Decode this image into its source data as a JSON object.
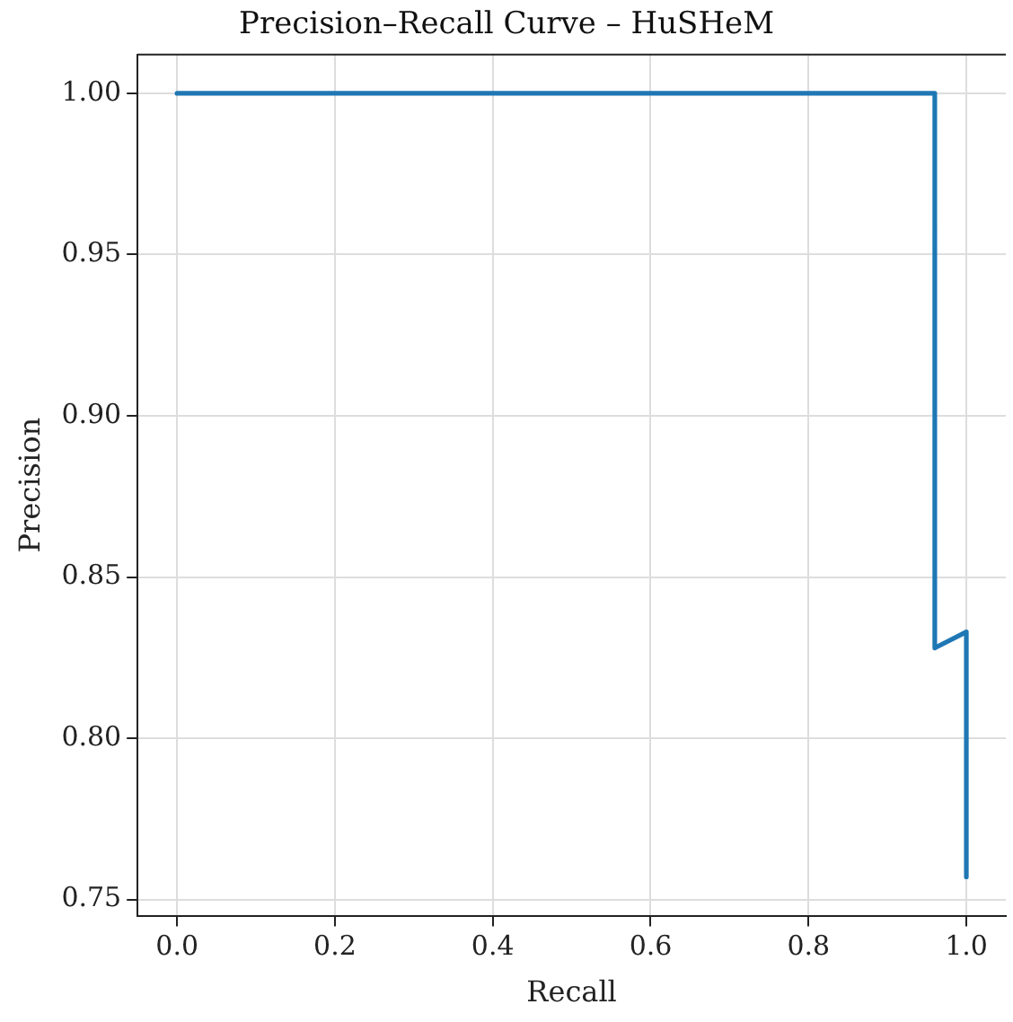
{
  "chart_data": {
    "type": "line",
    "title": "Precision–Recall Curve – HuSHeM",
    "xlabel": "Recall",
    "ylabel": "Precision",
    "x": [
      0,
      0.96,
      0.96,
      1,
      1
    ],
    "series": [
      {
        "color": "#1f77b4",
        "values": [
          1,
          1,
          0.828,
          0.833,
          0.757
        ]
      }
    ],
    "xlim": [
      -0.05,
      1.05
    ],
    "ylim": [
      0.745,
      1.012
    ],
    "xticks": [
      {
        "value": 0,
        "label": "0.0"
      },
      0.2,
      0.4,
      0.6,
      0.8,
      {
        "value": 1,
        "label": "1.0"
      }
    ],
    "yticks": [
      0.75,
      {
        "value": 0.8,
        "label": "0.80"
      },
      0.85,
      {
        "value": 0.9,
        "label": "0.90"
      },
      0.95,
      {
        "value": 1,
        "label": "1.00"
      }
    ],
    "grid": true,
    "legend": false,
    "marker": "none",
    "line_style": "solid"
  }
}
